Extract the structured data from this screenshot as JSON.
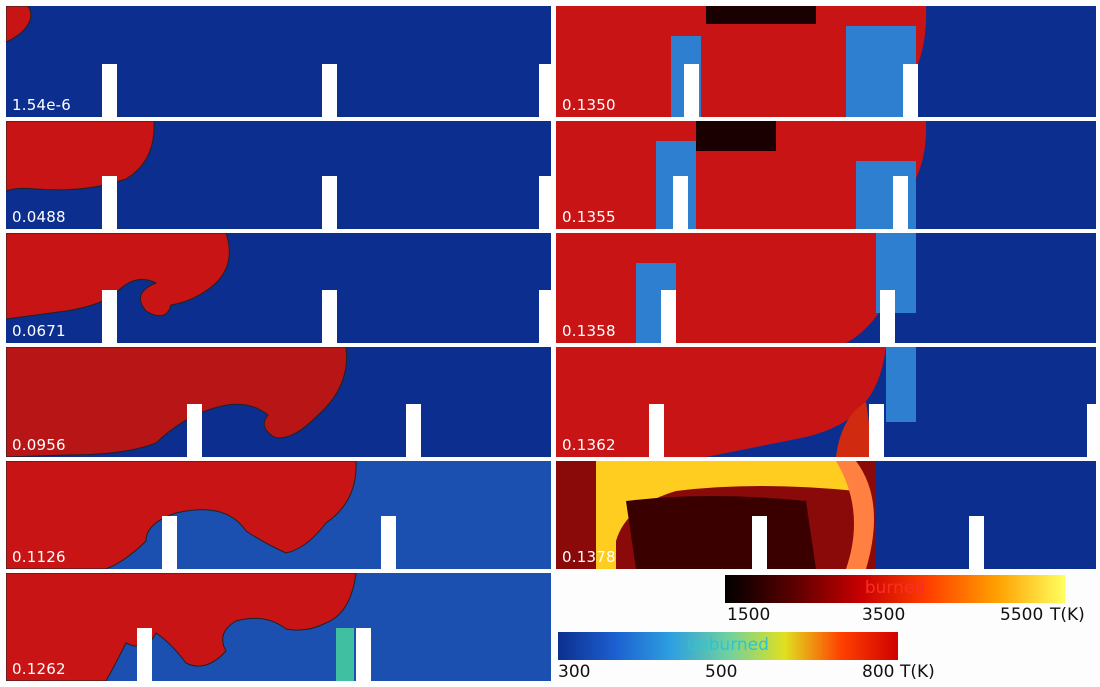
{
  "panels": [
    {
      "time": "1.54e-6",
      "obstacles": [
        "1",
        "2"
      ]
    },
    {
      "time": "0.0488",
      "obstacles": [
        "1",
        "2"
      ]
    },
    {
      "time": "0.0671",
      "obstacles": [
        "1",
        "2"
      ]
    },
    {
      "time": "0.0956",
      "obstacles": [
        "3",
        "4"
      ]
    },
    {
      "time": "0.1126",
      "obstacles": [
        "4",
        "5"
      ]
    },
    {
      "time": "0.1262",
      "obstacles": [
        "5",
        "6"
      ]
    },
    {
      "time": "0.1350",
      "obstacles": [
        "6",
        "7"
      ]
    },
    {
      "time": "0.1355",
      "obstacles": [
        "6",
        "7"
      ]
    },
    {
      "time": "0.1358",
      "obstacles": [
        "6",
        "7"
      ]
    },
    {
      "time": "0.1362",
      "obstacles": [
        "6",
        "7"
      ]
    },
    {
      "time": "0.1378",
      "obstacles": [
        "7",
        "8"
      ]
    }
  ],
  "colorbars": {
    "burned": {
      "title": "burned",
      "ticks": [
        "1500",
        "3500",
        "5500"
      ],
      "unit": "T(K)",
      "colors": [
        "#000000",
        "#5a0000",
        "#c80000",
        "#ff4000",
        "#ffa000",
        "#ffff60"
      ]
    },
    "unburned": {
      "title": "unburned",
      "ticks": [
        "300",
        "500",
        "800"
      ],
      "unit": "T(K)",
      "colors": [
        "#0c2f8f",
        "#1c5fd0",
        "#2ea0e0",
        "#6fd0a0",
        "#e0e020",
        "#ff4000",
        "#d00000"
      ]
    }
  }
}
